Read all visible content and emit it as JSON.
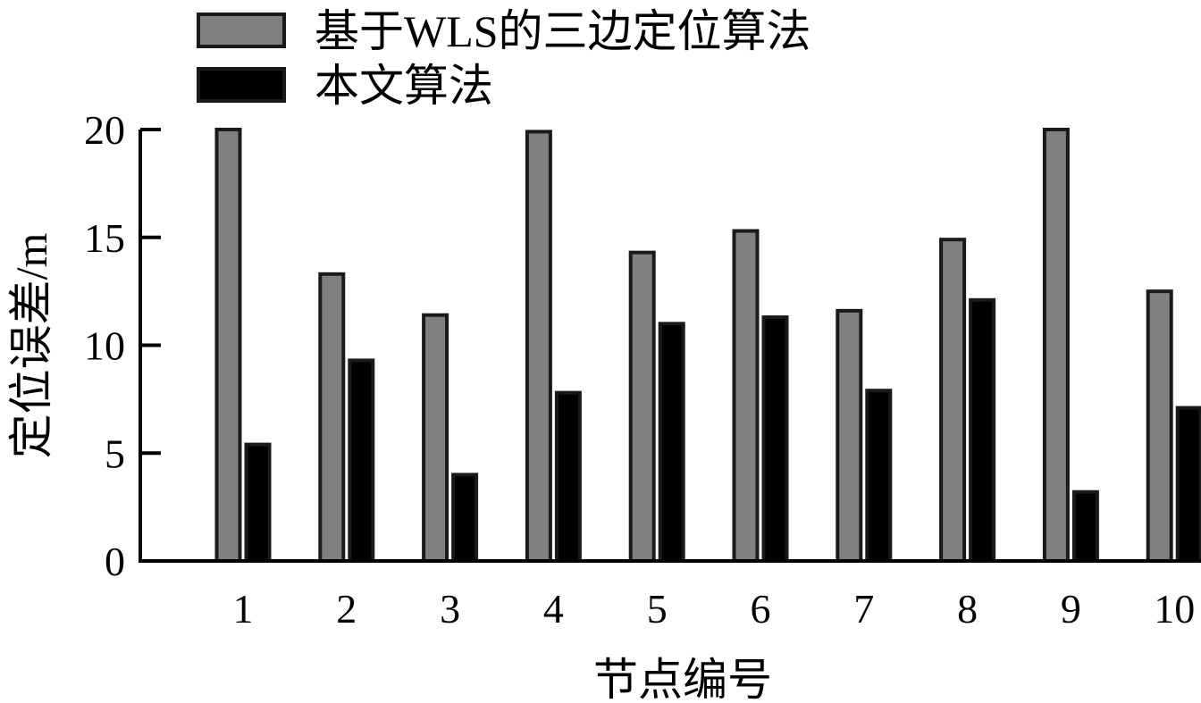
{
  "chart_data": {
    "type": "bar",
    "categories": [
      "1",
      "2",
      "3",
      "4",
      "5",
      "6",
      "7",
      "8",
      "9",
      "10"
    ],
    "series": [
      {
        "name": "基于WLS的三边定位算法",
        "color": "#808080",
        "values": [
          20.0,
          13.3,
          11.4,
          19.9,
          14.3,
          15.3,
          11.6,
          14.9,
          20.0,
          12.5
        ]
      },
      {
        "name": "本文算法",
        "color": "#000000",
        "values": [
          5.4,
          9.3,
          4.0,
          7.8,
          11.0,
          11.3,
          7.9,
          12.1,
          3.2,
          7.1
        ]
      }
    ],
    "xlabel": "节点编号",
    "ylabel": "定位误差/m",
    "ylim": [
      0,
      20
    ],
    "yticks": [
      "0",
      "5",
      "10",
      "15",
      "20"
    ],
    "grid": false,
    "legend_position": "top-left"
  }
}
